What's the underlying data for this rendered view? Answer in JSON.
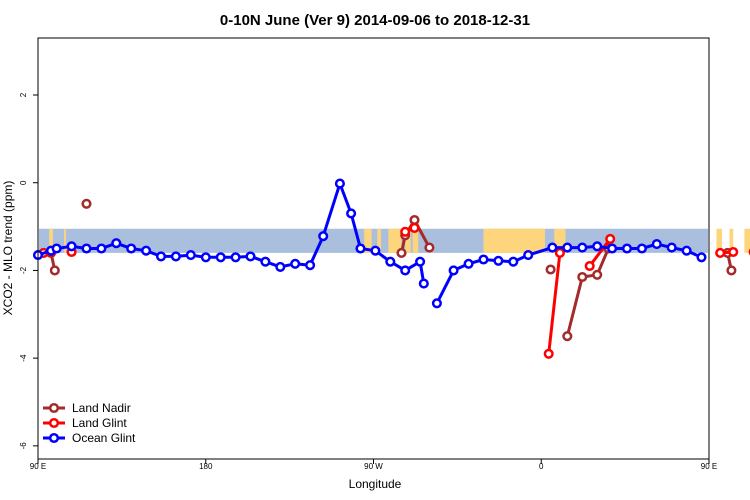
{
  "chart_data": {
    "type": "line",
    "title": "0-10N June (Ver 9)   2014-09-06 to 2018-12-31",
    "xlabel": "Longitude",
    "ylabel": "XCO2 - MLO trend (ppm)",
    "xlim": [
      90,
      450
    ],
    "ylim": [
      -6.3,
      3.3
    ],
    "x_ticks": [
      {
        "value": 90,
        "label": "90 E"
      },
      {
        "value": 180,
        "label": "180"
      },
      {
        "value": 270,
        "label": "90 W"
      },
      {
        "value": 360,
        "label": "0"
      },
      {
        "value": 450,
        "label": "90 E"
      },
      {
        "value": 540,
        "label": "180"
      }
    ],
    "y_ticks": [
      {
        "value": 2,
        "label": "2"
      },
      {
        "value": 0,
        "label": "0"
      },
      {
        "value": -2,
        "label": "-2"
      },
      {
        "value": -4,
        "label": "-4"
      },
      {
        "value": -6,
        "label": "-6"
      }
    ],
    "background_band": {
      "y_range": [
        -1.6,
        -1.05
      ],
      "ocean_color": "#a9bfdd",
      "land_color": "#fdd57d"
    },
    "legend_position": "bottom-left",
    "series": [
      {
        "name": "Land Nadir",
        "color": "#a52a2a",
        "segments": [
          [
            [
              97,
              -1.6
            ],
            [
              99,
              -2.0
            ]
          ],
          [
            [
              116,
              -0.48
            ]
          ],
          [
            [
              285,
              -1.6
            ],
            [
              287,
              -1.2
            ],
            [
              292,
              -0.85
            ],
            [
              300,
              -1.48
            ]
          ],
          [
            [
              365,
              -1.98
            ]
          ],
          [
            [
              374,
              -3.5
            ],
            [
              382,
              -2.15
            ],
            [
              390,
              -2.1
            ],
            [
              396,
              -1.5
            ]
          ],
          [
            [
              460,
              -1.6
            ],
            [
              462,
              -2.0
            ]
          ],
          [
            [
              480,
              -0.48
            ]
          ]
        ]
      },
      {
        "name": "Land Glint",
        "color": "#ff0000",
        "segments": [
          [
            [
              93,
              -1.6
            ],
            [
              97,
              -1.58
            ]
          ],
          [
            [
              108,
              -1.58
            ]
          ],
          [
            [
              287,
              -1.12
            ],
            [
              292,
              -1.03
            ]
          ],
          [
            [
              364,
              -3.9
            ],
            [
              370,
              -1.6
            ]
          ],
          [
            [
              386,
              -1.9
            ],
            [
              397,
              -1.28
            ]
          ],
          [
            [
              456,
              -1.6
            ],
            [
              463,
              -1.58
            ]
          ],
          [
            [
              474,
              -1.58
            ]
          ]
        ]
      },
      {
        "name": "Ocean Glint",
        "color": "#0000ff",
        "segments": [
          [
            [
              90,
              -1.65
            ],
            [
              97,
              -1.55
            ],
            [
              100,
              -1.5
            ],
            [
              108,
              -1.45
            ],
            [
              116,
              -1.5
            ],
            [
              124,
              -1.5
            ],
            [
              132,
              -1.38
            ],
            [
              140,
              -1.5
            ],
            [
              148,
              -1.55
            ],
            [
              156,
              -1.68
            ],
            [
              164,
              -1.68
            ],
            [
              172,
              -1.65
            ],
            [
              180,
              -1.7
            ],
            [
              188,
              -1.7
            ],
            [
              196,
              -1.7
            ],
            [
              204,
              -1.68
            ],
            [
              212,
              -1.8
            ],
            [
              220,
              -1.92
            ],
            [
              228,
              -1.85
            ],
            [
              236,
              -1.88
            ],
            [
              243,
              -1.22
            ],
            [
              252,
              -0.02
            ],
            [
              258,
              -0.7
            ],
            [
              263,
              -1.5
            ],
            [
              271,
              -1.55
            ],
            [
              279,
              -1.8
            ],
            [
              287,
              -2.0
            ],
            [
              295,
              -1.8
            ],
            [
              297,
              -2.3
            ]
          ],
          [
            [
              304,
              -2.75
            ],
            [
              313,
              -2.0
            ],
            [
              321,
              -1.85
            ],
            [
              329,
              -1.75
            ],
            [
              337,
              -1.78
            ],
            [
              345,
              -1.8
            ],
            [
              353,
              -1.65
            ],
            [
              366,
              -1.48
            ],
            [
              374,
              -1.48
            ],
            [
              382,
              -1.48
            ],
            [
              390,
              -1.45
            ],
            [
              398,
              -1.5
            ],
            [
              406,
              -1.5
            ],
            [
              414,
              -1.5
            ],
            [
              422,
              -1.4
            ],
            [
              430,
              -1.48
            ],
            [
              438,
              -1.55
            ],
            [
              446,
              -1.7
            ]
          ]
        ]
      }
    ]
  }
}
